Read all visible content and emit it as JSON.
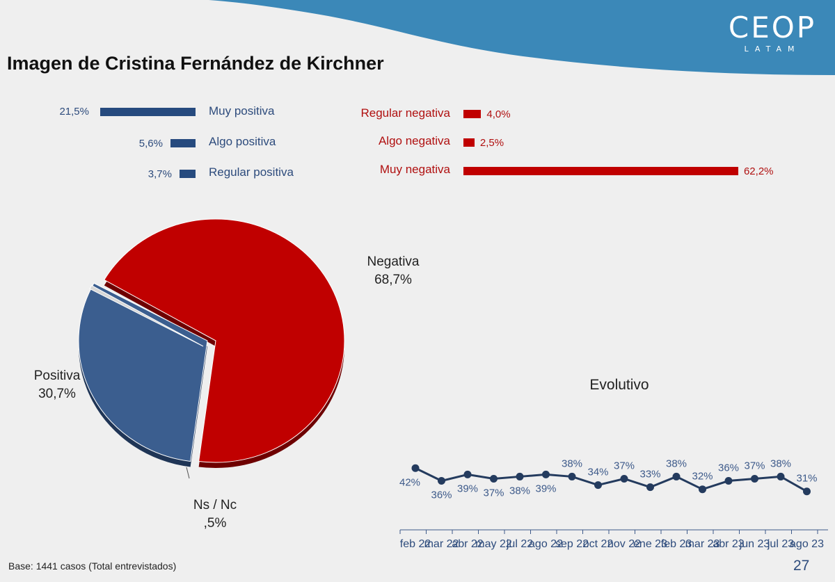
{
  "header": {
    "logo_text": "CEOP",
    "logo_sub": "LATAM",
    "title": "Imagen de Cristina Fernández de Kirchner"
  },
  "breakdown": {
    "positive": [
      {
        "label": "Muy positiva",
        "value": 21.5,
        "value_label": "21,5%"
      },
      {
        "label": "Algo positiva",
        "value": 5.6,
        "value_label": "5,6%"
      },
      {
        "label": "Regular positiva",
        "value": 3.7,
        "value_label": "3,7%"
      }
    ],
    "negative": [
      {
        "label": "Regular negativa",
        "value": 4.0,
        "value_label": "4,0%"
      },
      {
        "label": "Algo negativa",
        "value": 2.5,
        "value_label": "2,5%"
      },
      {
        "label": "Muy negativa",
        "value": 62.2,
        "value_label": "62,2%"
      }
    ]
  },
  "pie_labels": {
    "negativa_name": "Negativa",
    "negativa_value": "68,7%",
    "positiva_name": "Positiva",
    "positiva_value": "30,7%",
    "nsnc_name": "Ns / Nc",
    "nsnc_value": ",5%"
  },
  "chart_data": [
    {
      "type": "pie",
      "slices": [
        {
          "label": "Negativa",
          "value": 68.7
        },
        {
          "label": "Positiva",
          "value": 30.7
        },
        {
          "label": "Ns / Nc",
          "value": 0.5
        }
      ]
    },
    {
      "type": "line",
      "title": "Evolutivo",
      "categories": [
        "feb 22",
        "mar 22",
        "abr 22",
        "may 22",
        "jul 22",
        "ago 22",
        "sep 22",
        "oct 22",
        "nov 22",
        "ene 23",
        "feb 23",
        "mar 23",
        "abr 23",
        "jun 23",
        "jul 23",
        "ago 23"
      ],
      "values": [
        42,
        36,
        39,
        37,
        38,
        39,
        38,
        34,
        37,
        33,
        38,
        32,
        36,
        37,
        38,
        31
      ],
      "value_labels": [
        "42%",
        "36%",
        "39%",
        "37%",
        "38%",
        "39%",
        "38%",
        "34%",
        "37%",
        "33%",
        "38%",
        "32%",
        "36%",
        "37%",
        "38%",
        "31%"
      ],
      "label_positions": [
        "below",
        "below",
        "below",
        "below",
        "below",
        "below",
        "above",
        "above",
        "above",
        "above",
        "above",
        "above",
        "above",
        "above",
        "above",
        "above"
      ],
      "ylim": [
        25,
        48
      ],
      "color": "#243b5e",
      "label_color": "#3d5a8a"
    }
  ],
  "footer": {
    "base_text": "Base: 1441 casos (Total entrevistados)",
    "page_number": "27"
  },
  "colors": {
    "positive": "#264a7e",
    "negative": "#c00000",
    "header_wave": "#3b88b8"
  }
}
